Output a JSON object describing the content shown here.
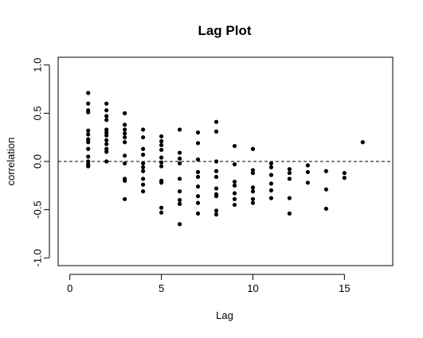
{
  "chart_data": {
    "type": "scatter",
    "title": "Lag Plot",
    "xlabel": "Lag",
    "ylabel": "correlation",
    "xlim": [
      -0.64,
      17.64
    ],
    "ylim": [
      -1.08,
      1.08
    ],
    "xticks": [
      0,
      5,
      10,
      15
    ],
    "xtick_labels": [
      "0",
      "5",
      "10",
      "15"
    ],
    "yticks": [
      -1.0,
      -0.5,
      0.0,
      0.5,
      1.0
    ],
    "ytick_labels": [
      "-1.0",
      "-0.5",
      "0.0",
      "0.5",
      "1.0"
    ],
    "reference_line": {
      "y": 0,
      "style": "dashed"
    },
    "grid": false,
    "legend": "none",
    "marker_color": "#000000",
    "points": [
      {
        "x": 1,
        "y": 0.71
      },
      {
        "x": 1,
        "y": 0.6
      },
      {
        "x": 1,
        "y": 0.53
      },
      {
        "x": 1,
        "y": 0.51
      },
      {
        "x": 1,
        "y": 0.32
      },
      {
        "x": 1,
        "y": 0.28
      },
      {
        "x": 1,
        "y": 0.23
      },
      {
        "x": 1,
        "y": 0.2
      },
      {
        "x": 1,
        "y": 0.13
      },
      {
        "x": 1,
        "y": 0.05
      },
      {
        "x": 1,
        "y": 0.0
      },
      {
        "x": 1,
        "y": -0.03
      },
      {
        "x": 1,
        "y": -0.05
      },
      {
        "x": 2,
        "y": 0.6
      },
      {
        "x": 2,
        "y": 0.53
      },
      {
        "x": 2,
        "y": 0.47
      },
      {
        "x": 2,
        "y": 0.43
      },
      {
        "x": 2,
        "y": 0.33
      },
      {
        "x": 2,
        "y": 0.3
      },
      {
        "x": 2,
        "y": 0.27
      },
      {
        "x": 2,
        "y": 0.22
      },
      {
        "x": 2,
        "y": 0.18
      },
      {
        "x": 2,
        "y": 0.13
      },
      {
        "x": 2,
        "y": 0.1
      },
      {
        "x": 2,
        "y": 0.0
      },
      {
        "x": 3,
        "y": 0.5
      },
      {
        "x": 3,
        "y": 0.38
      },
      {
        "x": 3,
        "y": 0.33
      },
      {
        "x": 3,
        "y": 0.29
      },
      {
        "x": 3,
        "y": 0.25
      },
      {
        "x": 3,
        "y": 0.2
      },
      {
        "x": 3,
        "y": 0.06
      },
      {
        "x": 3,
        "y": -0.02
      },
      {
        "x": 3,
        "y": -0.18
      },
      {
        "x": 3,
        "y": -0.2
      },
      {
        "x": 3,
        "y": -0.39
      },
      {
        "x": 4,
        "y": 0.33
      },
      {
        "x": 4,
        "y": 0.25
      },
      {
        "x": 4,
        "y": 0.13
      },
      {
        "x": 4,
        "y": 0.07
      },
      {
        "x": 4,
        "y": -0.02
      },
      {
        "x": 4,
        "y": -0.06
      },
      {
        "x": 4,
        "y": -0.1
      },
      {
        "x": 4,
        "y": -0.18
      },
      {
        "x": 4,
        "y": -0.24
      },
      {
        "x": 4,
        "y": -0.31
      },
      {
        "x": 5,
        "y": 0.26
      },
      {
        "x": 5,
        "y": 0.21
      },
      {
        "x": 5,
        "y": 0.17
      },
      {
        "x": 5,
        "y": 0.12
      },
      {
        "x": 5,
        "y": 0.04
      },
      {
        "x": 5,
        "y": -0.01
      },
      {
        "x": 5,
        "y": -0.05
      },
      {
        "x": 5,
        "y": -0.2
      },
      {
        "x": 5,
        "y": -0.22
      },
      {
        "x": 5,
        "y": -0.48
      },
      {
        "x": 5,
        "y": -0.53
      },
      {
        "x": 6,
        "y": 0.33
      },
      {
        "x": 6,
        "y": 0.09
      },
      {
        "x": 6,
        "y": 0.03
      },
      {
        "x": 6,
        "y": -0.02
      },
      {
        "x": 6,
        "y": -0.18
      },
      {
        "x": 6,
        "y": -0.31
      },
      {
        "x": 6,
        "y": -0.4
      },
      {
        "x": 6,
        "y": -0.44
      },
      {
        "x": 6,
        "y": -0.65
      },
      {
        "x": 7,
        "y": 0.3
      },
      {
        "x": 7,
        "y": 0.19
      },
      {
        "x": 7,
        "y": 0.02
      },
      {
        "x": 7,
        "y": -0.11
      },
      {
        "x": 7,
        "y": -0.16
      },
      {
        "x": 7,
        "y": -0.26
      },
      {
        "x": 7,
        "y": -0.36
      },
      {
        "x": 7,
        "y": -0.43
      },
      {
        "x": 7,
        "y": -0.54
      },
      {
        "x": 8,
        "y": 0.41
      },
      {
        "x": 8,
        "y": 0.31
      },
      {
        "x": 8,
        "y": 0.0
      },
      {
        "x": 8,
        "y": -0.1
      },
      {
        "x": 8,
        "y": -0.16
      },
      {
        "x": 8,
        "y": -0.28
      },
      {
        "x": 8,
        "y": -0.34
      },
      {
        "x": 8,
        "y": -0.36
      },
      {
        "x": 8,
        "y": -0.51
      },
      {
        "x": 8,
        "y": -0.55
      },
      {
        "x": 9,
        "y": 0.16
      },
      {
        "x": 9,
        "y": -0.03
      },
      {
        "x": 9,
        "y": -0.21
      },
      {
        "x": 9,
        "y": -0.25
      },
      {
        "x": 9,
        "y": -0.33
      },
      {
        "x": 9,
        "y": -0.39
      },
      {
        "x": 9,
        "y": -0.45
      },
      {
        "x": 10,
        "y": 0.13
      },
      {
        "x": 10,
        "y": -0.09
      },
      {
        "x": 10,
        "y": -0.12
      },
      {
        "x": 10,
        "y": -0.27
      },
      {
        "x": 10,
        "y": -0.31
      },
      {
        "x": 10,
        "y": -0.39
      },
      {
        "x": 10,
        "y": -0.43
      },
      {
        "x": 11,
        "y": -0.02
      },
      {
        "x": 11,
        "y": -0.06
      },
      {
        "x": 11,
        "y": -0.14
      },
      {
        "x": 11,
        "y": -0.23
      },
      {
        "x": 11,
        "y": -0.3
      },
      {
        "x": 11,
        "y": -0.38
      },
      {
        "x": 12,
        "y": -0.08
      },
      {
        "x": 12,
        "y": -0.12
      },
      {
        "x": 12,
        "y": -0.18
      },
      {
        "x": 12,
        "y": -0.38
      },
      {
        "x": 12,
        "y": -0.54
      },
      {
        "x": 13,
        "y": -0.04
      },
      {
        "x": 13,
        "y": -0.11
      },
      {
        "x": 13,
        "y": -0.22
      },
      {
        "x": 14,
        "y": -0.1
      },
      {
        "x": 14,
        "y": -0.29
      },
      {
        "x": 14,
        "y": -0.49
      },
      {
        "x": 15,
        "y": -0.12
      },
      {
        "x": 15,
        "y": -0.17
      },
      {
        "x": 16,
        "y": 0.2
      }
    ]
  }
}
